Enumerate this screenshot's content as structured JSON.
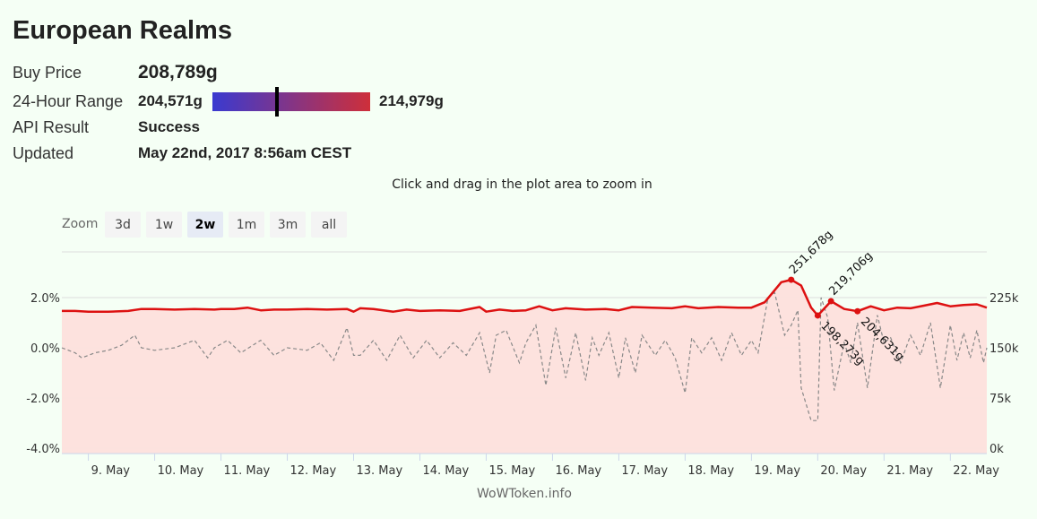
{
  "page": {
    "title": "European Realms"
  },
  "info": {
    "buy_price_label": "Buy Price",
    "buy_price_value": "208,789g",
    "range_label": "24-Hour Range",
    "range_low": "204,571g",
    "range_high": "214,979g",
    "range_position_fraction": 0.41,
    "api_label": "API Result",
    "api_value": "Success",
    "updated_label": "Updated",
    "updated_value": "May 22nd, 2017 8:56am CEST"
  },
  "colors": {
    "range_low": "#3a3ad0",
    "range_high": "#ce2f3a",
    "price_line": "#dd1111",
    "price_fill": "#fde0dc",
    "change_line": "#888888",
    "grid": "#dddddd"
  },
  "chart_subtitle": "Click and drag in the plot area to zoom in",
  "zoom": {
    "label": "Zoom",
    "buttons": [
      {
        "label": "3d",
        "active": false
      },
      {
        "label": "1w",
        "active": false
      },
      {
        "label": "2w",
        "active": true
      },
      {
        "label": "1m",
        "active": false
      },
      {
        "label": "3m",
        "active": false
      },
      {
        "label": "all",
        "active": false
      }
    ]
  },
  "credit": "WoWToken.info",
  "chart_data": {
    "type": "line",
    "title": "",
    "x_range": [
      8.6,
      22.55
    ],
    "x_ticks": [
      {
        "x": 9,
        "label": "9. May"
      },
      {
        "x": 10,
        "label": "10. May"
      },
      {
        "x": 11,
        "label": "11. May"
      },
      {
        "x": 12,
        "label": "12. May"
      },
      {
        "x": 13,
        "label": "13. May"
      },
      {
        "x": 14,
        "label": "14. May"
      },
      {
        "x": 15,
        "label": "15. May"
      },
      {
        "x": 16,
        "label": "16. May"
      },
      {
        "x": 17,
        "label": "17. May"
      },
      {
        "x": 18,
        "label": "18. May"
      },
      {
        "x": 19,
        "label": "19. May"
      },
      {
        "x": 20,
        "label": "20. May"
      },
      {
        "x": 21,
        "label": "21. May"
      },
      {
        "x": 22,
        "label": "22. May"
      }
    ],
    "y_left": {
      "range": [
        -4,
        4
      ],
      "ticks": [
        {
          "v": -4,
          "label": "-4.0%"
        },
        {
          "v": -2,
          "label": "-2.0%"
        },
        {
          "v": 0,
          "label": "0.0%"
        },
        {
          "v": 2,
          "label": "2.0%"
        }
      ]
    },
    "y_right": {
      "range": [
        0,
        300000
      ],
      "ticks": [
        {
          "v": 0,
          "label": "0k"
        },
        {
          "v": 75000,
          "label": "75k"
        },
        {
          "v": 150000,
          "label": "150k"
        },
        {
          "v": 225000,
          "label": "225k"
        }
      ]
    },
    "grid": true,
    "series": [
      {
        "kind": "price-area",
        "axis": "right",
        "x": [
          8.6,
          8.8,
          9.0,
          9.3,
          9.6,
          9.8,
          10.0,
          10.3,
          10.6,
          10.9,
          11.0,
          11.2,
          11.4,
          11.6,
          11.8,
          12.0,
          12.3,
          12.6,
          12.9,
          13.0,
          13.1,
          13.3,
          13.6,
          13.8,
          14.0,
          14.3,
          14.6,
          14.9,
          15.0,
          15.2,
          15.4,
          15.6,
          15.8,
          16.0,
          16.2,
          16.5,
          16.8,
          17.0,
          17.2,
          17.5,
          17.8,
          18.0,
          18.2,
          18.5,
          18.8,
          19.0,
          19.2,
          19.45,
          19.6,
          19.75,
          19.9,
          20.0,
          20.2,
          20.4,
          20.6,
          20.8,
          21.0,
          21.2,
          21.4,
          21.6,
          21.8,
          22.0,
          22.2,
          22.4,
          22.55
        ],
        "y": [
          205000,
          205000,
          204000,
          204000,
          205000,
          208000,
          208000,
          207000,
          208000,
          207000,
          208000,
          208000,
          210000,
          206000,
          207000,
          207000,
          208000,
          207000,
          208000,
          204000,
          209000,
          208000,
          204000,
          207000,
          205000,
          206000,
          205000,
          211000,
          204000,
          207000,
          205000,
          206000,
          212000,
          206000,
          209000,
          207000,
          208000,
          206000,
          211000,
          210000,
          209000,
          212000,
          209000,
          211000,
          210000,
          210000,
          218000,
          248000,
          251678,
          243000,
          210000,
          198273,
          219706,
          208000,
          204631,
          212000,
          206000,
          210000,
          209000,
          213000,
          217000,
          212000,
          214000,
          215000,
          210000
        ]
      },
      {
        "kind": "change-dashed",
        "axis": "left",
        "x": [
          8.6,
          8.8,
          8.9,
          9.1,
          9.3,
          9.5,
          9.7,
          9.8,
          10.0,
          10.3,
          10.6,
          10.8,
          10.9,
          11.1,
          11.3,
          11.6,
          11.8,
          12.0,
          12.3,
          12.5,
          12.7,
          12.9,
          13.0,
          13.1,
          13.3,
          13.5,
          13.7,
          13.9,
          14.1,
          14.3,
          14.5,
          14.7,
          14.9,
          15.05,
          15.15,
          15.3,
          15.5,
          15.6,
          15.75,
          15.9,
          16.05,
          16.2,
          16.35,
          16.5,
          16.6,
          16.7,
          16.85,
          17.0,
          17.1,
          17.25,
          17.35,
          17.55,
          17.7,
          17.85,
          18.0,
          18.1,
          18.25,
          18.4,
          18.55,
          18.7,
          18.85,
          19.0,
          19.1,
          19.25,
          19.35,
          19.5,
          19.6,
          19.7,
          19.75,
          19.9,
          19.95,
          20.0,
          20.05,
          20.15,
          20.25,
          20.4,
          20.5,
          20.6,
          20.75,
          20.9,
          21.0,
          21.1,
          21.25,
          21.4,
          21.55,
          21.7,
          21.85,
          22.0,
          22.1,
          22.2,
          22.3,
          22.4,
          22.5,
          22.55
        ],
        "y": [
          0.0,
          -0.2,
          -0.4,
          -0.2,
          -0.1,
          0.1,
          0.5,
          0.0,
          -0.1,
          0.0,
          0.3,
          -0.4,
          0.0,
          0.3,
          -0.2,
          0.3,
          -0.3,
          0.0,
          -0.1,
          0.2,
          -0.5,
          0.8,
          -0.3,
          -0.3,
          0.3,
          -0.5,
          0.5,
          -0.4,
          0.3,
          -0.4,
          0.2,
          -0.3,
          0.6,
          -1.0,
          0.5,
          0.7,
          -0.6,
          0.2,
          0.9,
          -1.5,
          0.8,
          -1.2,
          0.6,
          -1.3,
          0.4,
          -0.3,
          0.6,
          -1.2,
          0.4,
          -1.0,
          0.5,
          -0.3,
          0.3,
          -0.4,
          -1.8,
          0.4,
          -0.2,
          0.4,
          -0.5,
          0.6,
          -0.3,
          0.3,
          -0.2,
          2.0,
          2.2,
          0.5,
          0.9,
          1.5,
          -1.6,
          -2.9,
          -2.9,
          -2.9,
          2.0,
          1.2,
          -1.7,
          0.2,
          -0.6,
          1.0,
          -1.6,
          1.3,
          0.2,
          0.4,
          -0.6,
          0.5,
          -0.3,
          1.0,
          -1.6,
          0.9,
          -0.5,
          0.6,
          -0.4,
          0.7,
          -0.6,
          0.0
        ]
      }
    ],
    "annotations": [
      {
        "x": 19.6,
        "y": 251678,
        "label": "251,678g",
        "placement": "above"
      },
      {
        "x": 20.0,
        "y": 198273,
        "label": "198,273g",
        "placement": "below"
      },
      {
        "x": 20.2,
        "y": 219706,
        "label": "219,706g",
        "placement": "above"
      },
      {
        "x": 20.6,
        "y": 204631,
        "label": "204,631g",
        "placement": "below"
      }
    ]
  }
}
